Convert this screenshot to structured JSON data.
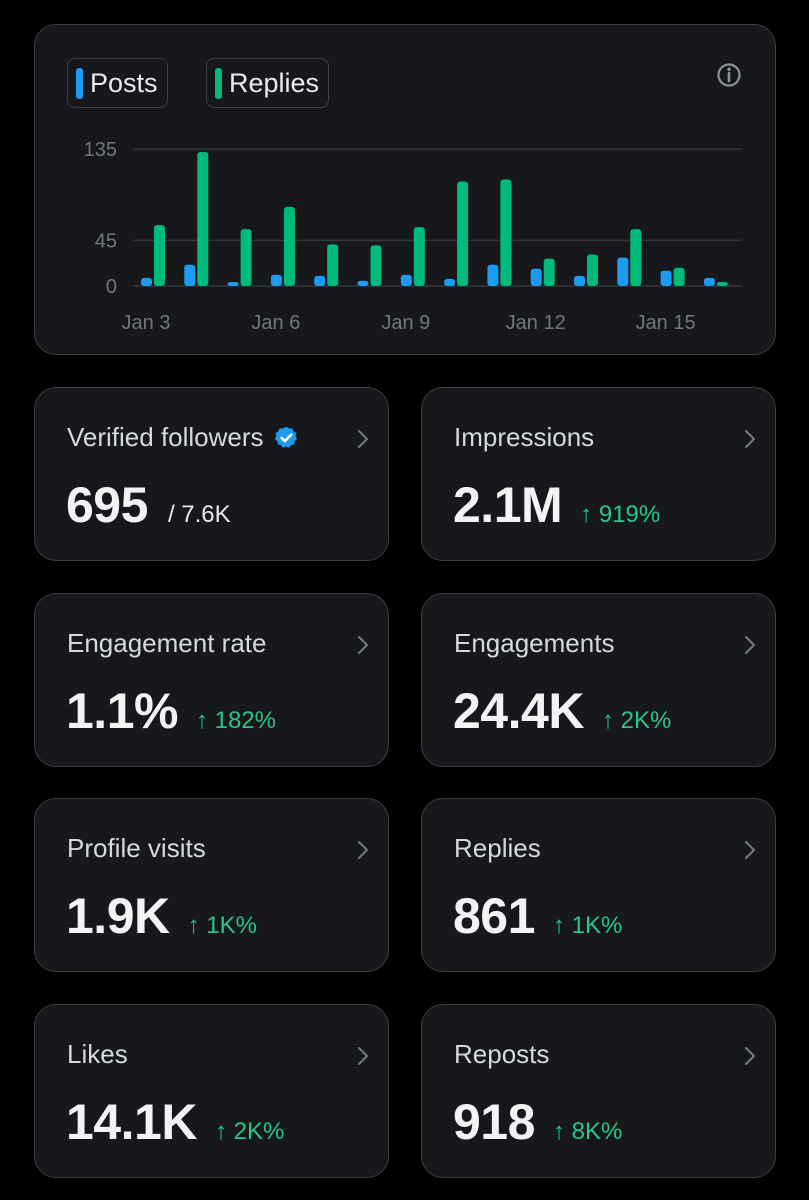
{
  "legend": {
    "posts_label": "Posts",
    "replies_label": "Replies",
    "posts_color": "#1d9bf0",
    "replies_color": "#00ba7c"
  },
  "chart_data": {
    "type": "bar",
    "categories": [
      "Jan 3",
      "Jan 4",
      "Jan 5",
      "Jan 6",
      "Jan 7",
      "Jan 8",
      "Jan 9",
      "Jan 10",
      "Jan 11",
      "Jan 12",
      "Jan 13",
      "Jan 14",
      "Jan 15",
      "Jan 16"
    ],
    "series": [
      {
        "name": "Posts",
        "color": "#1d9bf0",
        "values": [
          8,
          21,
          4,
          11,
          10,
          5,
          11,
          7,
          21,
          17,
          10,
          28,
          15,
          8
        ]
      },
      {
        "name": "Replies",
        "color": "#00ba7c",
        "values": [
          60,
          132,
          56,
          78,
          41,
          40,
          58,
          103,
          105,
          27,
          31,
          56,
          18,
          4
        ]
      }
    ],
    "x_tick_labels": [
      "Jan 3",
      "Jan 6",
      "Jan 9",
      "Jan 12",
      "Jan 15"
    ],
    "y_ticks": [
      0,
      45,
      135
    ],
    "ylim": [
      0,
      135
    ],
    "title": "",
    "xlabel": "",
    "ylabel": ""
  },
  "metrics": [
    {
      "name": "verified-followers",
      "label": "Verified followers",
      "value": "695",
      "sub": "/ 7.6K",
      "delta": "",
      "verified": true
    },
    {
      "name": "impressions",
      "label": "Impressions",
      "value": "2.1M",
      "sub": "",
      "delta": "↑ 919%"
    },
    {
      "name": "engagement-rate",
      "label": "Engagement rate",
      "value": "1.1%",
      "sub": "",
      "delta": "↑ 182%"
    },
    {
      "name": "engagements",
      "label": "Engagements",
      "value": "24.4K",
      "sub": "",
      "delta": "↑ 2K%"
    },
    {
      "name": "profile-visits",
      "label": "Profile visits",
      "value": "1.9K",
      "sub": "",
      "delta": "↑ 1K%"
    },
    {
      "name": "replies",
      "label": "Replies",
      "value": "861",
      "sub": "",
      "delta": "↑ 1K%"
    },
    {
      "name": "likes",
      "label": "Likes",
      "value": "14.1K",
      "sub": "",
      "delta": "↑ 2K%"
    },
    {
      "name": "reposts",
      "label": "Reposts",
      "value": "918",
      "sub": "",
      "delta": "↑ 8K%"
    }
  ]
}
